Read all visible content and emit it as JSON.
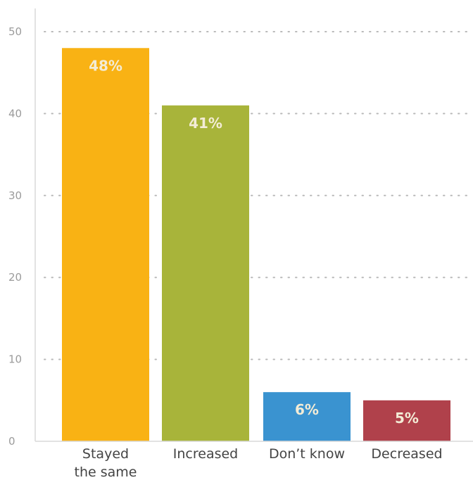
{
  "chart_data": {
    "type": "bar",
    "categories": [
      "Stayed\nthe same",
      "Increased",
      "Don’t know",
      "Decreased"
    ],
    "values": [
      48,
      41,
      6,
      5
    ],
    "data_labels": [
      "48%",
      "41%",
      "6%",
      "5%"
    ],
    "colors": [
      "#f9b214",
      "#a8b43a",
      "#3a93d0",
      "#b0414b"
    ],
    "ylim": [
      0,
      50
    ],
    "yticks": [
      "0",
      "10",
      "20",
      "30",
      "40",
      "50"
    ],
    "ytick_values": [
      0,
      10,
      20,
      30,
      40,
      50
    ],
    "grid": true,
    "title": "",
    "xlabel": "",
    "ylabel": ""
  }
}
